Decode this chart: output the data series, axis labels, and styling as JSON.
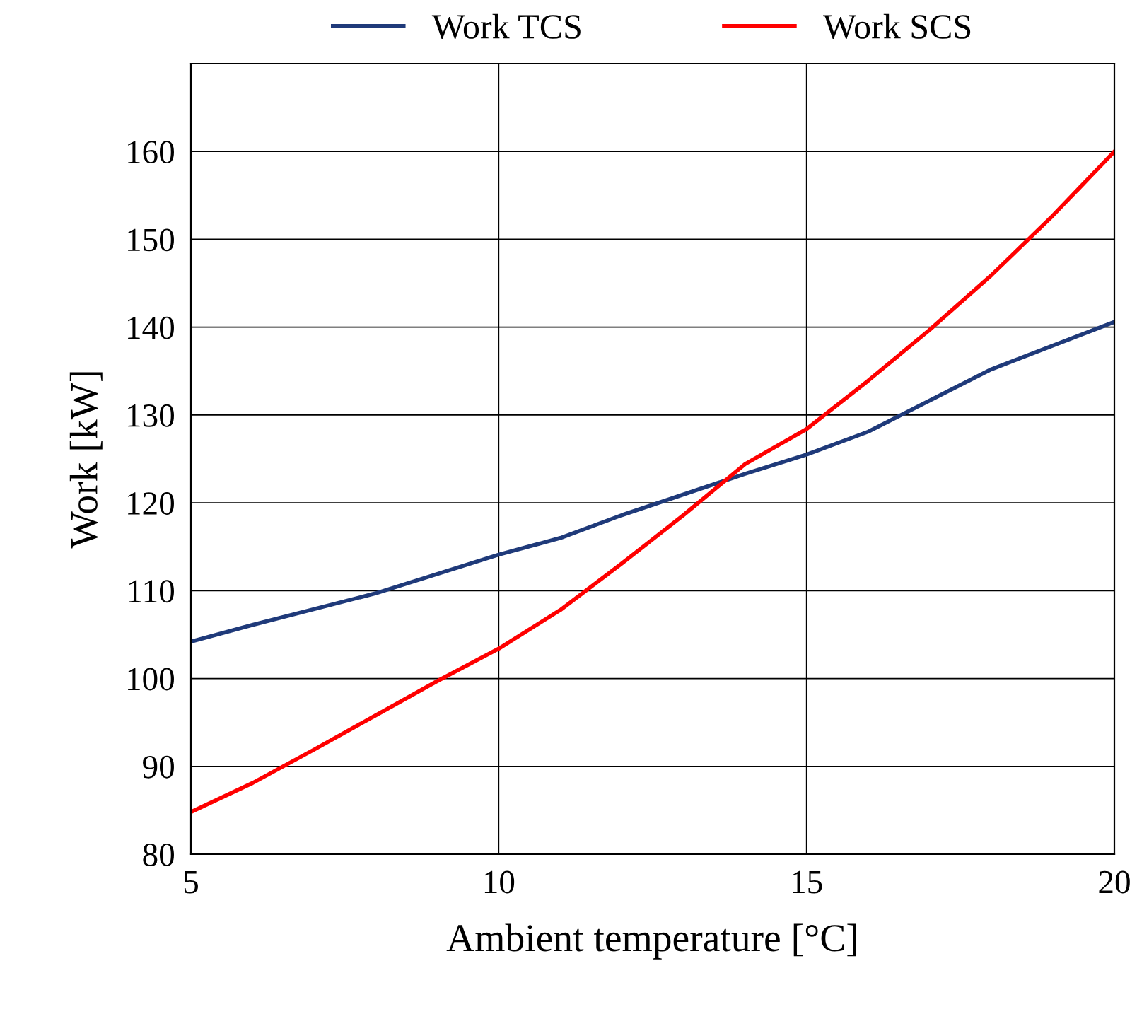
{
  "chart_data": {
    "type": "line",
    "xlabel": "Ambient temperature [°C]",
    "ylabel": "Work [kW]",
    "xlim": [
      5,
      20
    ],
    "xticks": [
      5,
      10,
      15,
      20
    ],
    "ylim": [
      80,
      170
    ],
    "yticks": [
      80,
      90,
      100,
      110,
      120,
      130,
      140,
      150,
      160
    ],
    "grid": true,
    "legend": "top",
    "marker": "none",
    "line_style": "solid",
    "series": [
      {
        "name": "Work TCS",
        "color": "#1f3a7a",
        "x": [
          5,
          6,
          8,
          10,
          11,
          12,
          14,
          15,
          16,
          18,
          20
        ],
        "values": [
          104.2,
          106.1,
          109.7,
          114.1,
          116,
          118.6,
          123.3,
          125.5,
          128.1,
          135.2,
          140.6
        ]
      },
      {
        "name": "Work SCS",
        "color": "#ff0000",
        "x": [
          5,
          6,
          7,
          8,
          9,
          10,
          11,
          12,
          13,
          14,
          15,
          16,
          17,
          18,
          19,
          20
        ],
        "values": [
          84.8,
          88.1,
          91.9,
          95.8,
          99.7,
          103.4,
          107.8,
          113.1,
          118.6,
          124.4,
          128.4,
          133.9,
          139.7,
          145.9,
          152.7,
          160
        ]
      }
    ]
  }
}
